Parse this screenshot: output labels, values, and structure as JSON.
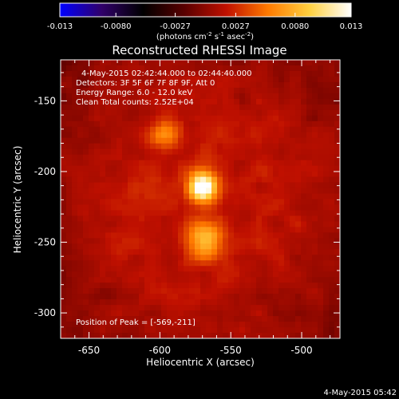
{
  "chart_data": {
    "type": "heatmap",
    "title": "Reconstructed RHESSI Image",
    "xlabel": "Heliocentric X (arcsec)",
    "ylabel": "Heliocentric Y (arcsec)",
    "xlim": [
      -670,
      -473
    ],
    "ylim": [
      -318,
      -121
    ],
    "x_ticks": [
      -650,
      -600,
      -550,
      -500
    ],
    "x_tick_labels": [
      "-650",
      "-600",
      "-550",
      "-500"
    ],
    "y_ticks": [
      -300,
      -250,
      -200,
      -150
    ],
    "y_tick_labels": [
      "-300",
      "-250",
      "-200",
      "-150"
    ],
    "colorbar": {
      "min": -0.013,
      "max": 0.013,
      "ticks": [
        -0.013,
        -0.008,
        -0.0027,
        0.0027,
        0.008,
        0.013
      ],
      "tick_labels": [
        "-0.013",
        "-0.0080",
        "-0.0027",
        "0.0027",
        "0.0080",
        "0.013"
      ],
      "label_prefix": "(photons cm",
      "label_exp1": "-2",
      "label_mid": " s",
      "label_exp2": "-1",
      "label_mid2": " asec",
      "label_exp3": "-2",
      "label_suffix": ")",
      "stops": [
        "#0000ff",
        "#30006a",
        "#000000",
        "#5a0000",
        "#c01000",
        "#ff7a00",
        "#ffd040",
        "#ffffff"
      ]
    },
    "sources": [
      {
        "x": -570,
        "y": -211,
        "sigma": 7,
        "amp": 0.013
      },
      {
        "x": -568,
        "y": -248,
        "sigma": 9,
        "amp": 0.0075
      },
      {
        "x": -597,
        "y": -174,
        "sigma": 8,
        "amp": 0.0038
      }
    ],
    "annotations": {
      "time_range": "4-May-2015 02:42:44.000 to 02:44:40.000",
      "detectors": "Detectors: 3F 5F 6F 7F 8F 9F, Att 0",
      "energy": "Energy Range: 6.0 - 12.0 keV",
      "clean": "Clean    Total counts: 2.52E+04",
      "peak": "Position of Peak = [-569,-211]"
    }
  },
  "footer": {
    "timestamp": "4-May-2015 05:42"
  }
}
